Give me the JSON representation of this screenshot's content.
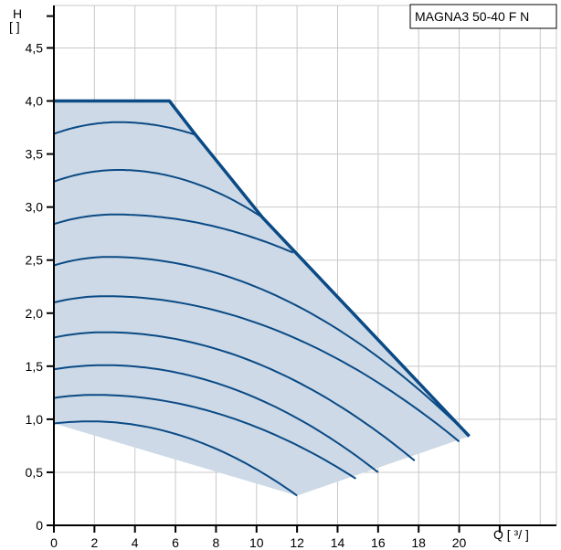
{
  "chart_data": {
    "type": "line",
    "title": "MAGNA3 50-40 F N",
    "y_axis": {
      "label": "H",
      "unit_label": "[ ]",
      "min": 0,
      "max": 4.9,
      "tick_values": [
        0,
        0.5,
        1.0,
        1.5,
        2.0,
        2.5,
        3.0,
        3.5,
        4.0,
        4.5
      ],
      "tick_labels": [
        "0",
        "0,5",
        "1,0",
        "1,5",
        "2,0",
        "2,5",
        "3,0",
        "3,5",
        "4,0",
        "4,5"
      ]
    },
    "x_axis": {
      "label": "Q [ ³/ ]",
      "min": 0,
      "max": 24.8,
      "tick_values": [
        0,
        2,
        4,
        6,
        8,
        10,
        12,
        14,
        16,
        18,
        20
      ],
      "tick_labels": [
        "0",
        "2",
        "4",
        "6",
        "8",
        "10",
        "12",
        "14",
        "16",
        "18",
        "20"
      ]
    },
    "grid": true,
    "colors": {
      "curve": "#0a4a85",
      "fill": "#cdd9e6",
      "grid": "#c8c8c8"
    },
    "envelope": {
      "x": [
        0,
        5.7,
        7,
        10.3,
        20.5,
        12
      ],
      "y": [
        4.0,
        4.0,
        3.68,
        2.9,
        0.84,
        0.28
      ]
    },
    "series": [
      {
        "peak_x": 3.2,
        "peak_y": 3.8,
        "start_y": 3.69,
        "end_x": 7.0,
        "end_y": 3.68
      },
      {
        "peak_x": 3.2,
        "peak_y": 3.35,
        "start_y": 3.24,
        "end_x": 10.3,
        "end_y": 2.9
      },
      {
        "peak_x": 3.0,
        "peak_y": 2.93,
        "start_y": 2.84,
        "end_x": 11.8,
        "end_y": 2.57
      },
      {
        "peak_x": 2.7,
        "peak_y": 2.53,
        "start_y": 2.45,
        "end_x": 20.5,
        "end_y": 0.84
      },
      {
        "peak_x": 2.5,
        "peak_y": 2.16,
        "start_y": 2.1,
        "end_x": 20.0,
        "end_y": 0.79
      },
      {
        "peak_x": 2.5,
        "peak_y": 1.82,
        "start_y": 1.77,
        "end_x": 17.8,
        "end_y": 0.61
      },
      {
        "peak_x": 2.5,
        "peak_y": 1.51,
        "start_y": 1.47,
        "end_x": 16.0,
        "end_y": 0.5
      },
      {
        "peak_x": 2.0,
        "peak_y": 1.23,
        "start_y": 1.2,
        "end_x": 14.9,
        "end_y": 0.44
      },
      {
        "peak_x": 1.8,
        "peak_y": 0.98,
        "start_y": 0.96,
        "end_x": 12.0,
        "end_y": 0.28
      }
    ]
  }
}
